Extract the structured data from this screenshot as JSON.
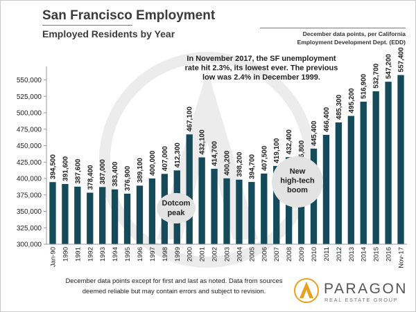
{
  "header": {
    "title": "San Francisco Employment",
    "subtitle": "Employed Residents by Year",
    "source_line1": "December data points, per California",
    "source_line2": "Employment Development Dept. (EDD)"
  },
  "annotations": {
    "unemployment_lines": [
      "In November 2017, the SF unemployment",
      "rate hit 2.3%, its lowest ever. The previous",
      "low was 2.4% in December 1999."
    ],
    "dotcom_lines": [
      "Dotcom",
      "peak"
    ],
    "hightech_lines": [
      "New",
      "high-tech",
      "boom"
    ]
  },
  "footer": {
    "line1": "December data points except for first and last as noted. Data from sources",
    "line2": "deemed reliable but may contain errors and subject to revision."
  },
  "logo": {
    "name": "PARAGON",
    "tagline": "REAL ESTATE GROUP"
  },
  "colors": {
    "bar": "#144a5a",
    "text": "#222222",
    "callout_bg": "#e3e3e3",
    "logo_gold": "#e8a020",
    "watermark": "#ececec"
  },
  "chart_data": {
    "type": "bar",
    "categories": [
      "Jan-90",
      "1990",
      "1991",
      "1992",
      "1993",
      "1994",
      "1995",
      "1996",
      "1997",
      "1998",
      "1999",
      "2000",
      "2001",
      "2002",
      "2003",
      "2004",
      "2005",
      "2006",
      "2007",
      "2008",
      "2009",
      "2010",
      "2011",
      "2012",
      "2013",
      "2014",
      "2015",
      "2016",
      "Nov-17"
    ],
    "values": [
      394500,
      391600,
      387600,
      378400,
      387000,
      383400,
      376900,
      389100,
      400000,
      407000,
      412300,
      467100,
      432100,
      414700,
      400200,
      398200,
      394700,
      407500,
      419100,
      432400,
      415800,
      445400,
      466400,
      485300,
      495200,
      516900,
      532700,
      547200,
      557400
    ],
    "labels": [
      "394,500",
      "391,600",
      "387,600",
      "378,400",
      "387,000",
      "383,400",
      "376,900",
      "389,100",
      "400,000",
      "407,000",
      "412,300",
      "467,100",
      "432,100",
      "414,700",
      "400,200",
      "398,200",
      "394,700",
      "407,500",
      "419,100",
      "432,400",
      "415,800",
      "445,400",
      "466,400",
      "485,300",
      "495,200",
      "516,900",
      "532,700",
      "547,200",
      "557,400"
    ],
    "ylim": [
      300000,
      560000
    ],
    "yticks": [
      300000,
      325000,
      350000,
      375000,
      400000,
      425000,
      450000,
      475000,
      500000,
      525000,
      550000
    ],
    "ytick_labels": [
      "300,000",
      "325,000",
      "350,000",
      "375,000",
      "400,000",
      "425,000",
      "450,000",
      "475,000",
      "500,000",
      "525,000",
      "550,000"
    ],
    "xlabel": "",
    "ylabel": "",
    "grid": false,
    "legend": "none"
  }
}
